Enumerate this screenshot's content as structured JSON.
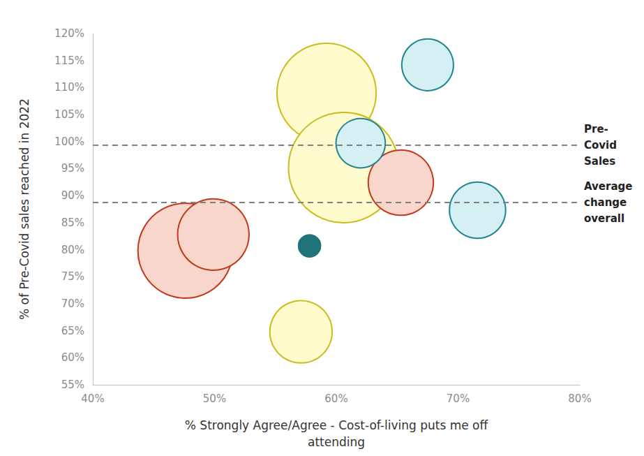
{
  "chart_data": {
    "type": "bubble",
    "x_label": "% Strongly Agree/Agree - Cost-of-living puts me off\nattending",
    "y_label": "% of Pre-Covid sales reached in 2022",
    "x": [
      59.2,
      60.6,
      57.1,
      65.3,
      47.6,
      49.9,
      57.8,
      67.5,
      62.0,
      71.6
    ],
    "values": [
      109.0,
      95.2,
      64.8,
      92.4,
      79.8,
      82.8,
      80.7,
      114.2,
      99.7,
      87.3
    ],
    "sizes": [
      81,
      100,
      32,
      35,
      74,
      42,
      4,
      22,
      20,
      26
    ],
    "colors": [
      "#fffbcc",
      "#fffbcc",
      "#fffbcc",
      "#f9d6cc",
      "#f9d6cc",
      "#f9d6cc",
      "#21737a",
      "#d4f0f3",
      "#d4f0f3",
      "#d4f0f3"
    ],
    "xlim": [
      40,
      80
    ],
    "xticks": [
      {
        "value": 40,
        "label": "40%"
      },
      {
        "value": 50,
        "label": "50%"
      },
      {
        "value": 60,
        "label": "60%"
      },
      {
        "value": 70,
        "label": "70%"
      },
      {
        "value": 80,
        "label": "80%"
      }
    ],
    "ylim": [
      55,
      120
    ],
    "yticks": [
      {
        "value": 55,
        "label": "55%"
      },
      {
        "value": 60,
        "label": "60%"
      },
      {
        "value": 65,
        "label": "65%"
      },
      {
        "value": 70,
        "label": "70%"
      },
      {
        "value": 75,
        "label": "75%"
      },
      {
        "value": 80,
        "label": "80%"
      },
      {
        "value": 85,
        "label": "85%"
      },
      {
        "value": 90,
        "label": "90%"
      },
      {
        "value": 95,
        "label": "95%"
      },
      {
        "value": 100,
        "label": "100%"
      },
      {
        "value": 105,
        "label": "105%"
      },
      {
        "value": 110,
        "label": "110%"
      },
      {
        "value": 115,
        "label": "115%"
      },
      {
        "value": 120,
        "label": "120%"
      }
    ],
    "reference_lines": [
      {
        "value": 99.3,
        "label": "Pre-\nCovid\nSales"
      },
      {
        "value": 88.7,
        "label": "Average\nchange\noverall"
      }
    ],
    "grid": false
  }
}
